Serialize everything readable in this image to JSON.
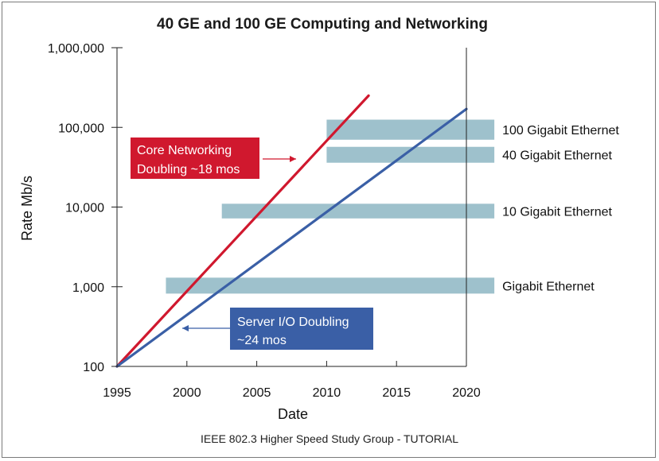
{
  "chart_data": {
    "type": "line",
    "title": "40 GE and 100 GE Computing and Networking",
    "xlabel": "Date",
    "ylabel": "Rate Mb/s",
    "x_ticks": [
      "1995",
      "2000",
      "2005",
      "2010",
      "2015",
      "2020"
    ],
    "y_ticks": [
      "100",
      "1,000",
      "10,000",
      "100,000",
      "1,000,000"
    ],
    "x_range": [
      1995,
      2020
    ],
    "y_range": [
      100,
      1000000
    ],
    "y_scale": "log",
    "grid": false,
    "series": [
      {
        "key": "core",
        "color": "#d0182e",
        "x": [
          1995,
          2013
        ],
        "y": [
          100,
          250000
        ]
      },
      {
        "key": "server",
        "color": "#3a5fa6",
        "x": [
          1995,
          2020
        ],
        "y": [
          100,
          170000
        ]
      }
    ],
    "bands": [
      {
        "label": "100 Gigabit Ethernet",
        "x_start": 2010,
        "x_end": 2022,
        "y_low": 70000,
        "y_high": 125000
      },
      {
        "label": "40 Gigabit Ethernet",
        "x_start": 2010,
        "x_end": 2022,
        "y_low": 36000,
        "y_high": 57000
      },
      {
        "label": "10 Gigabit Ethernet",
        "x_start": 2002.5,
        "x_end": 2022,
        "y_low": 7200,
        "y_high": 11000
      },
      {
        "label": "Gigabit Ethernet",
        "x_start": 1998.5,
        "x_end": 2022,
        "y_low": 820,
        "y_high": 1300
      }
    ],
    "band_color": "#9ec1cc",
    "annotations": [
      {
        "key": "core",
        "lines": [
          "Core Networking",
          "Doubling ~18 mos"
        ],
        "color": "#d0182e"
      },
      {
        "key": "server",
        "lines": [
          "Server I/O Doubling",
          " ~24 mos"
        ],
        "color": "#3a5fa6"
      }
    ]
  },
  "footer": "IEEE 802.3 Higher Speed Study Group - TUTORIAL"
}
